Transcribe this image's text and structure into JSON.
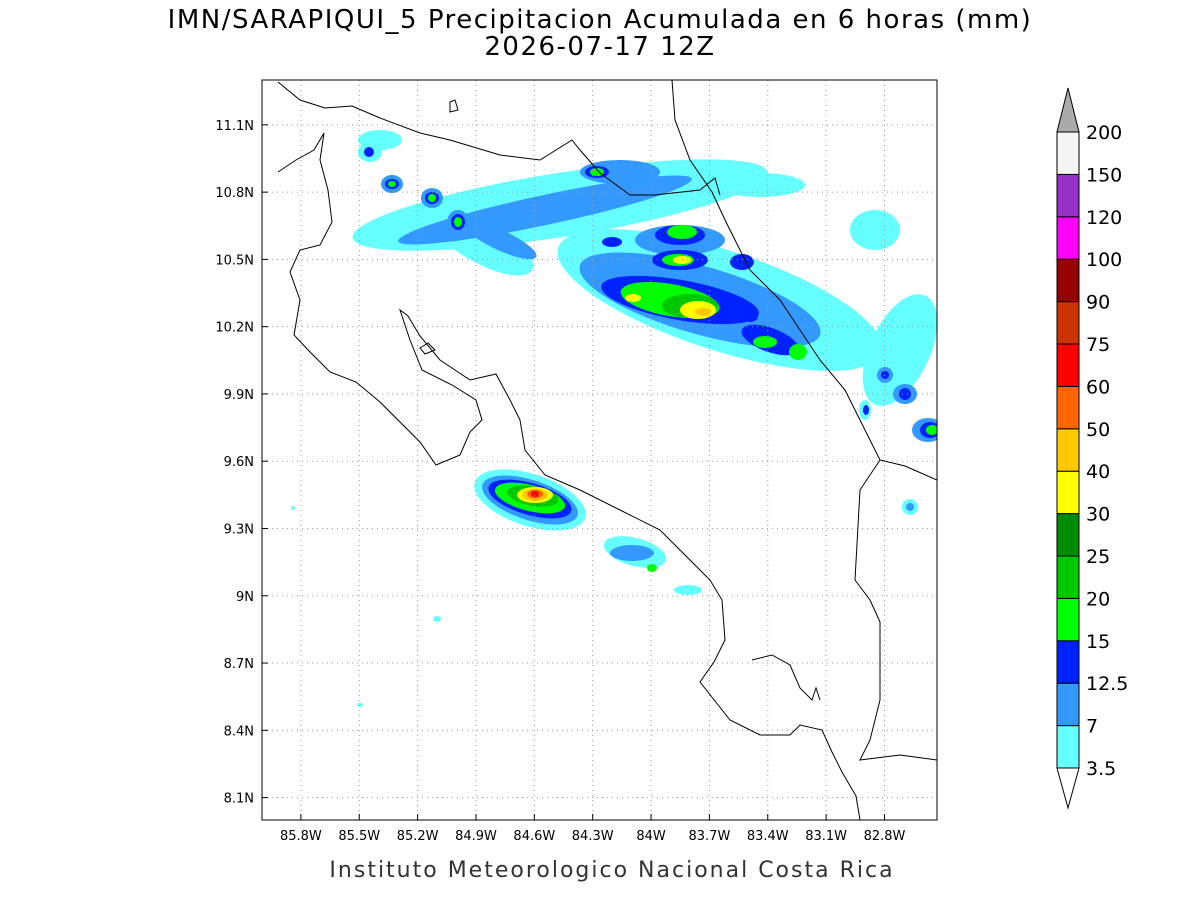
{
  "map": {
    "title": "IMN/SARAPIQUI_5 Precipitacion Acumulada en 6 horas (mm)",
    "subtitle": "2026-07-17 12Z",
    "footer": "Instituto Meteorologico Nacional Costa Rica",
    "xlim": [
      -86.0,
      -82.53
    ],
    "ylim": [
      8.0,
      11.3
    ],
    "xticks": [
      {
        "value": -85.8,
        "label": "85.8W"
      },
      {
        "value": -85.5,
        "label": "85.5W"
      },
      {
        "value": -85.2,
        "label": "85.2W"
      },
      {
        "value": -84.9,
        "label": "84.9W"
      },
      {
        "value": -84.6,
        "label": "84.6W"
      },
      {
        "value": -84.3,
        "label": "84.3W"
      },
      {
        "value": -84.0,
        "label": "84W"
      },
      {
        "value": -83.7,
        "label": "83.7W"
      },
      {
        "value": -83.4,
        "label": "83.4W"
      },
      {
        "value": -83.1,
        "label": "83.1W"
      },
      {
        "value": -82.8,
        "label": "82.8W"
      }
    ],
    "yticks": [
      {
        "value": 8.1,
        "label": "8.1N"
      },
      {
        "value": 8.4,
        "label": "8.4N"
      },
      {
        "value": 8.7,
        "label": "8.7N"
      },
      {
        "value": 9.0,
        "label": "9N"
      },
      {
        "value": 9.3,
        "label": "9.3N"
      },
      {
        "value": 9.6,
        "label": "9.6N"
      },
      {
        "value": 9.9,
        "label": "9.9N"
      },
      {
        "value": 10.2,
        "label": "10.2N"
      },
      {
        "value": 10.5,
        "label": "10.5N"
      },
      {
        "value": 10.8,
        "label": "10.8N"
      },
      {
        "value": 11.1,
        "label": "11.1N"
      }
    ],
    "grid": true,
    "colorbar": {
      "levels": [
        3.5,
        7,
        12.5,
        15,
        20,
        25,
        30,
        40,
        50,
        60,
        75,
        90,
        100,
        120,
        150,
        200
      ],
      "colors": [
        "#66ffff",
        "#3399ff",
        "#0022ff",
        "#00ff00",
        "#00c800",
        "#008c00",
        "#ffff00",
        "#ffc800",
        "#ff6400",
        "#ff0000",
        "#cc3300",
        "#960000",
        "#ff00ff",
        "#9632c8",
        "#f5f5f5"
      ],
      "under_color": "#ffffff",
      "over_color": "#aaaaaa"
    }
  }
}
